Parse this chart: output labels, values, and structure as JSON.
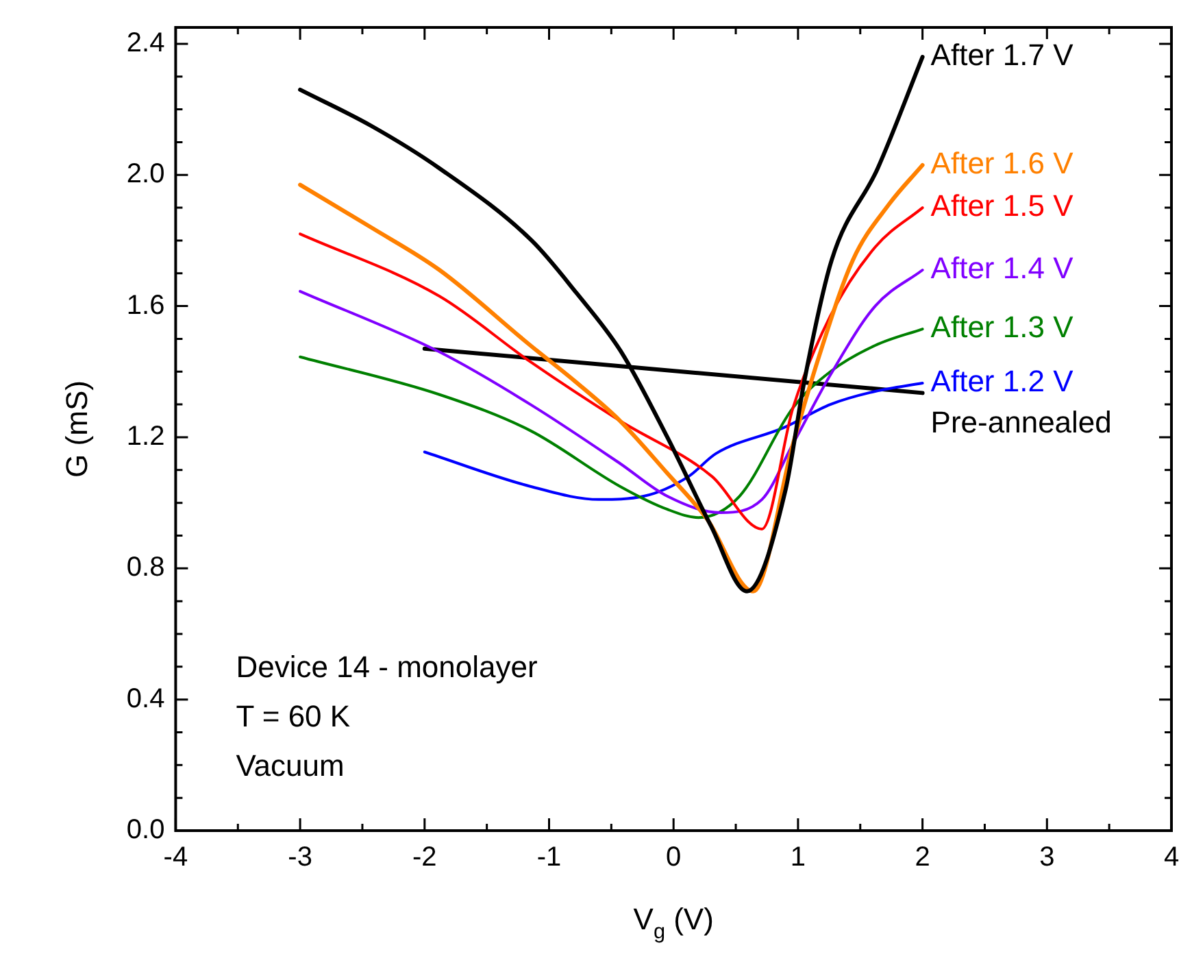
{
  "chart_data": {
    "type": "line",
    "xlabel": "V$_{g}$ (V)",
    "ylabel": "G (mS)",
    "xlim": [
      -4,
      4
    ],
    "xticks": [
      -4,
      {
        "value": -3.5,
        "label": null
      },
      -3,
      {
        "value": -2.5,
        "label": null
      },
      -2,
      {
        "value": -1.5,
        "label": null
      },
      -1,
      {
        "value": -0.5,
        "label": null
      },
      0,
      {
        "value": 0.5,
        "label": null
      },
      1,
      {
        "value": 1.5,
        "label": null
      },
      2,
      {
        "value": 2.5,
        "label": null
      },
      3,
      {
        "value": 3.5,
        "label": null
      },
      4
    ],
    "ylim": [
      0,
      2.45
    ],
    "yticks": [
      {
        "value": 0,
        "label": "0.0"
      },
      {
        "value": 0.1,
        "label": null
      },
      {
        "value": 0.2,
        "label": null
      },
      {
        "value": 0.3,
        "label": null
      },
      {
        "value": 0.4,
        "label": "0.4"
      },
      {
        "value": 0.5,
        "label": null
      },
      {
        "value": 0.6,
        "label": null
      },
      {
        "value": 0.7,
        "label": null
      },
      {
        "value": 0.8,
        "label": "0.8"
      },
      {
        "value": 0.9,
        "label": null
      },
      {
        "value": 1.0,
        "label": null
      },
      {
        "value": 1.1,
        "label": null
      },
      {
        "value": 1.2,
        "label": "1.2"
      },
      {
        "value": 1.3,
        "label": null
      },
      {
        "value": 1.4,
        "label": null
      },
      {
        "value": 1.5,
        "label": null
      },
      {
        "value": 1.6,
        "label": "1.6"
      },
      {
        "value": 1.7,
        "label": null
      },
      {
        "value": 1.8,
        "label": null
      },
      {
        "value": 1.9,
        "label": null
      },
      {
        "value": 2.0,
        "label": "2.0"
      },
      {
        "value": 2.1,
        "label": null
      },
      {
        "value": 2.2,
        "label": null
      },
      {
        "value": 2.3,
        "label": null
      },
      {
        "value": 2.4,
        "label": "2.4"
      }
    ],
    "grid": false,
    "legend": "right",
    "marker": "none",
    "line_style": "solid",
    "series": [
      {
        "name": "After 1.7 V",
        "color": "#000000",
        "x": [
          -3,
          -2.43,
          -1.88,
          -1.14,
          -0.78,
          -0.42,
          -0.05,
          0.3,
          0.59,
          0.9,
          1.05,
          1.27,
          1.64,
          2
        ],
        "values": [
          2.26,
          2.15,
          2.02,
          1.8,
          1.64,
          1.46,
          1.2,
          0.93,
          0.73,
          1.04,
          1.37,
          1.74,
          2.02,
          2.36
        ]
      },
      {
        "name": "After 1.6 V",
        "color": "#ff8000",
        "x": [
          -3,
          -2.43,
          -1.88,
          -1.15,
          -0.79,
          -0.43,
          -0.05,
          0.27,
          0.64,
          0.96,
          1.18,
          1.44,
          1.73,
          2
        ],
        "values": [
          1.97,
          1.84,
          1.71,
          1.48,
          1.37,
          1.25,
          1.09,
          0.95,
          0.73,
          1.18,
          1.46,
          1.74,
          1.91,
          2.03
        ]
      },
      {
        "name": "After 1.5 V",
        "color": "#ff0000",
        "x": [
          -3,
          -1.88,
          -1.15,
          -0.43,
          0.31,
          0.71,
          0.96,
          1.26,
          1.62,
          2
        ],
        "values": [
          1.82,
          1.63,
          1.43,
          1.25,
          1.08,
          0.92,
          1.29,
          1.57,
          1.78,
          1.9
        ]
      },
      {
        "name": "After 1.4 V",
        "color": "#8000ff",
        "x": [
          -3,
          -1.88,
          -1.15,
          -0.43,
          -0.05,
          0.38,
          0.71,
          0.96,
          1.26,
          1.62,
          2
        ],
        "values": [
          1.645,
          1.46,
          1.3,
          1.12,
          1.02,
          0.97,
          1.01,
          1.18,
          1.39,
          1.6,
          1.71
        ]
      },
      {
        "name": "After 1.3 V",
        "color": "#008000",
        "x": [
          -3,
          -1.88,
          -1.15,
          -0.43,
          -0.05,
          0.2,
          0.53,
          0.96,
          1.26,
          1.62,
          2
        ],
        "values": [
          1.445,
          1.33,
          1.22,
          1.05,
          0.98,
          0.955,
          1.02,
          1.29,
          1.4,
          1.48,
          1.53
        ]
      },
      {
        "name": "After 1.2 V",
        "color": "#0000ff",
        "x": [
          -2,
          -1.15,
          -0.6,
          -0.24,
          0.12,
          0.34,
          0.89,
          1.26,
          1.62,
          2
        ],
        "values": [
          1.155,
          1.05,
          1.01,
          1.02,
          1.08,
          1.15,
          1.23,
          1.3,
          1.34,
          1.365
        ]
      },
      {
        "name": "Pre-annealed",
        "color": "#000000",
        "x": [
          -2,
          2
        ],
        "values": [
          1.47,
          1.335
        ]
      }
    ],
    "annotations": [
      "Device 14 - monolayer",
      "T = 60 K",
      "Vacuum"
    ]
  }
}
